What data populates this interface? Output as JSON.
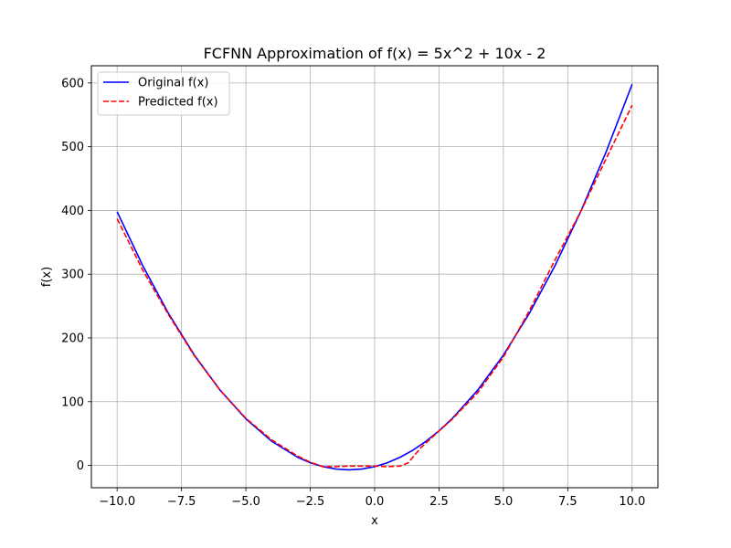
{
  "chart_data": {
    "type": "line",
    "title": "FCFNN Approximation of f(x) = 5x^2 + 10x - 2",
    "xlabel": "x",
    "ylabel": "f(x)",
    "xlim": [
      -11,
      11
    ],
    "ylim": [
      -35,
      627
    ],
    "xticks": [
      -10,
      -7.5,
      -5,
      -2.5,
      0,
      2.5,
      5,
      7.5,
      10
    ],
    "xtick_labels": [
      "−10.0",
      "−7.5",
      "−5.0",
      "−2.5",
      "0.0",
      "2.5",
      "5.0",
      "7.5",
      "10.0"
    ],
    "yticks": [
      0,
      100,
      200,
      300,
      400,
      500,
      600
    ],
    "ytick_labels": [
      "0",
      "100",
      "200",
      "300",
      "400",
      "500",
      "600"
    ],
    "grid": true,
    "legend_position": "top-left",
    "series": [
      {
        "name": "Original f(x)",
        "color": "#0000ff",
        "style": "solid",
        "x": [
          -10,
          -9,
          -8,
          -7,
          -6,
          -5,
          -4,
          -3,
          -2.5,
          -2,
          -1.5,
          -1,
          -0.5,
          0,
          0.5,
          1,
          1.5,
          2,
          2.5,
          3,
          4,
          5,
          6,
          7,
          8,
          9,
          10
        ],
        "y": [
          398,
          313,
          238,
          173,
          118,
          73,
          38,
          13,
          4.25,
          -2,
          -5.75,
          -7,
          -5.75,
          -2,
          4.25,
          13,
          24.25,
          38,
          54.25,
          73,
          118,
          173,
          238,
          313,
          398,
          493,
          598
        ]
      },
      {
        "name": "Predicted f(x)",
        "color": "#ff0000",
        "style": "dashed",
        "x": [
          -10,
          -9,
          -8,
          -7,
          -6,
          -5,
          -4,
          -3,
          -2.5,
          -2,
          -1.5,
          -1,
          -0.5,
          0,
          0.5,
          1,
          1.3,
          1.8,
          2.5,
          3,
          4,
          5,
          6,
          7,
          8,
          9,
          10
        ],
        "y": [
          387,
          306,
          236,
          172,
          118,
          74,
          40,
          15,
          5,
          -2,
          -2,
          -1,
          -1,
          -1,
          -2,
          -1,
          4,
          28,
          54,
          72,
          114,
          170,
          242,
          322,
          398,
          482,
          565
        ]
      }
    ]
  }
}
